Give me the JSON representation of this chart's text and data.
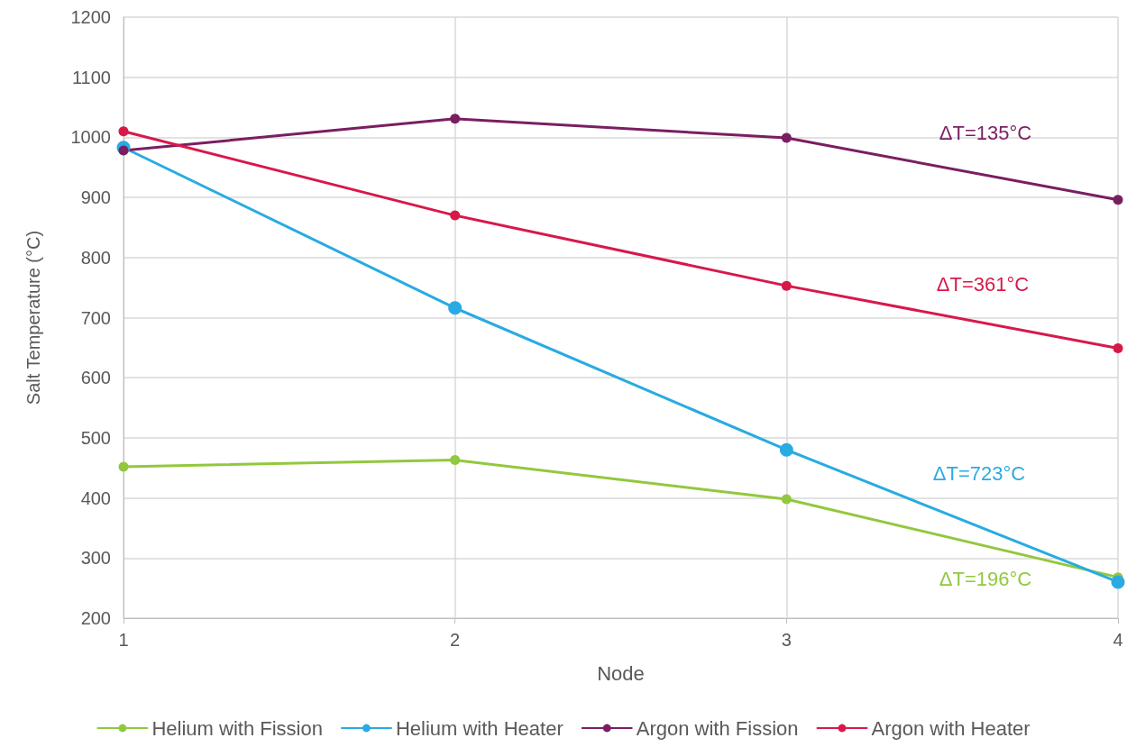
{
  "chart_data": {
    "type": "line",
    "xlabel": "Node",
    "ylabel": "Salt Temperature (°C)",
    "x": [
      1,
      2,
      3,
      4
    ],
    "series": [
      {
        "name": "Helium with Fission",
        "color": "#92c83e",
        "values": [
          452,
          463,
          398,
          268
        ]
      },
      {
        "name": "Helium with Heater",
        "color": "#29abe2",
        "values": [
          983,
          716,
          480,
          260
        ]
      },
      {
        "name": "Argon with Fission",
        "color": "#7a1e62",
        "values": [
          978,
          1031,
          999,
          896
        ]
      },
      {
        "name": "Argon with Heater",
        "color": "#d7194a",
        "values": [
          1010,
          870,
          753,
          649
        ]
      }
    ],
    "annotations": [
      "ΔT=196°C",
      "ΔT=723°C",
      "ΔT=135°C",
      "ΔT=361°C"
    ],
    "xlim": [
      1,
      4
    ],
    "xticks": [
      1,
      2,
      3,
      4
    ],
    "ylim": [
      200,
      1200
    ],
    "yticks": [
      200,
      300,
      400,
      500,
      600,
      700,
      800,
      900,
      1000,
      1100,
      1200
    ],
    "grid": true,
    "legend": "bottom",
    "marker": "circle",
    "line_style": "solid"
  }
}
